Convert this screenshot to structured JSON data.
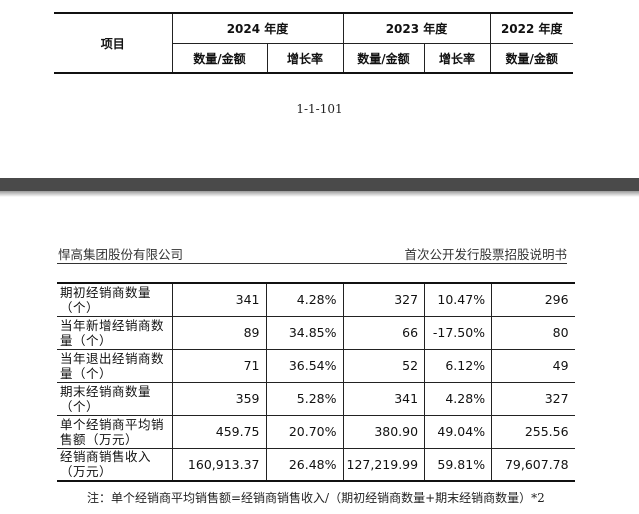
{
  "prev_table": {
    "item_header": "项目",
    "years": [
      "2024 年度",
      "2023 年度",
      "2022 年度"
    ],
    "sub_quantity": "数量/金额",
    "sub_growth": "增长率"
  },
  "page_number": "1-1-101",
  "page_header": {
    "company": "悍高集团股份有限公司",
    "document": "首次公开发行股票招股说明书"
  },
  "rows": [
    {
      "label": "期初经销商数量（个）",
      "v2024": "341",
      "g2024": "4.28%",
      "v2023": "327",
      "g2023": "10.47%",
      "v2022": "296"
    },
    {
      "label": "当年新增经销商数量（个）",
      "v2024": "89",
      "g2024": "34.85%",
      "v2023": "66",
      "g2023": "-17.50%",
      "v2022": "80"
    },
    {
      "label": "当年退出经销商数量（个）",
      "v2024": "71",
      "g2024": "36.54%",
      "v2023": "52",
      "g2023": "6.12%",
      "v2022": "49"
    },
    {
      "label": "期末经销商数量（个）",
      "v2024": "359",
      "g2024": "5.28%",
      "v2023": "341",
      "g2023": "4.28%",
      "v2022": "327"
    },
    {
      "label": "单个经销商平均销售额（万元）",
      "v2024": "459.75",
      "g2024": "20.70%",
      "v2023": "380.90",
      "g2023": "49.04%",
      "v2022": "255.56"
    },
    {
      "label": "经销商销售收入（万元）",
      "v2024": "160,913.37",
      "g2024": "26.48%",
      "v2023": "127,219.99",
      "g2023": "59.81%",
      "v2022": "79,607.78"
    }
  ],
  "note": "注：单个经销商平均销售额=经销商销售收入/（期初经销商数量+期末经销商数量）*2"
}
